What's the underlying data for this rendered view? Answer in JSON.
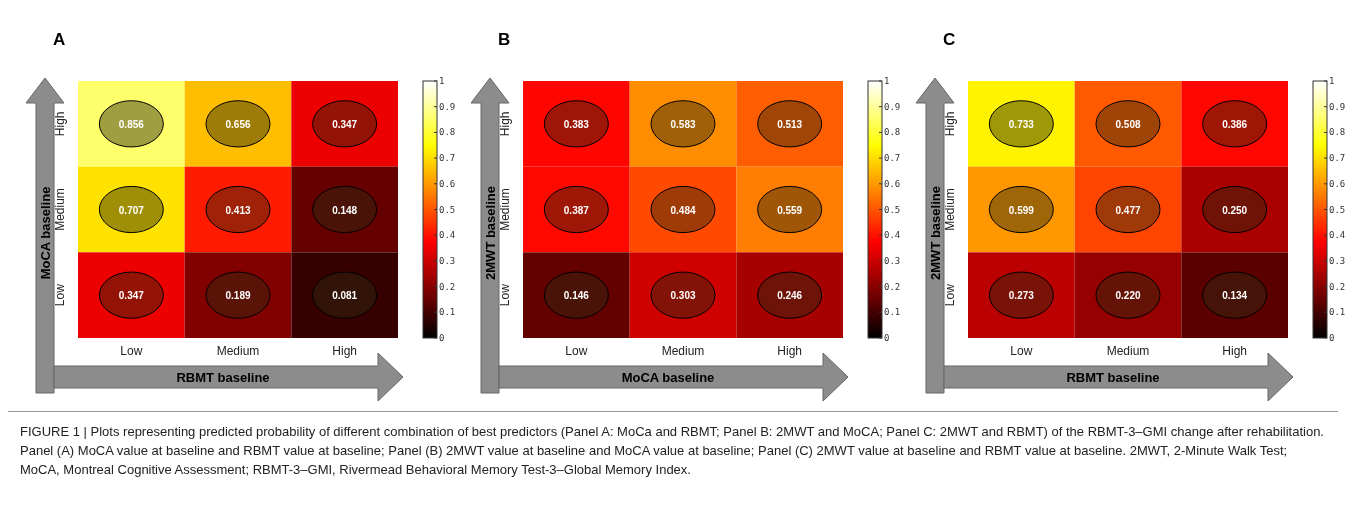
{
  "chart_data": [
    {
      "type": "heatmap",
      "title": "A",
      "xlabel": "RBMT baseline",
      "ylabel": "MoCA baseline",
      "categories": [
        "Low",
        "Medium",
        "High"
      ],
      "y_categories": [
        "High",
        "Medium",
        "Low"
      ],
      "cells": [
        [
          0.856,
          0.656,
          0.347
        ],
        [
          0.707,
          0.413,
          0.148
        ],
        [
          0.347,
          0.189,
          0.081
        ]
      ],
      "cell_labels": [
        [
          "0.856",
          "0.656",
          "0.347"
        ],
        [
          "0.707",
          "0.413",
          "0.148"
        ],
        [
          "0.347",
          "0.189",
          "0.081"
        ]
      ],
      "clim": [
        0,
        1
      ],
      "cticks": [
        0,
        0.1,
        0.2,
        0.3,
        0.4,
        0.5,
        0.6,
        0.7,
        0.8,
        0.9,
        1
      ],
      "annotations": [
        "FIGURE 1 | Plots representing predicted probability of different combination of best predictors (Panel A: MoCa and RBMT; Panel B: 2MWT and MoCA; Panel C: 2MWT and RBMT) of the RBMT-3–GMI change after rehabilitation. Panel (A) MoCA value at baseline and RBMT value at baseline; Panel (B) 2MWT value at baseline and MoCA value at baseline; Panel (C) 2MWT value at baseline and RBMT value at baseline. 2MWT, 2-Minute Walk Test; MoCA, Montreal Cognitive Assessment; RBMT-3–GMI, Rivermead Behavioral Memory Test-3–Global Memory Index."
      ]
    },
    {
      "type": "heatmap",
      "title": "B",
      "xlabel": "MoCA baseline",
      "ylabel": "2MWT baseline",
      "categories": [
        "Low",
        "Medium",
        "High"
      ],
      "y_categories": [
        "High",
        "Medium",
        "Low"
      ],
      "cells": [
        [
          0.383,
          0.583,
          0.513
        ],
        [
          0.387,
          0.484,
          0.559
        ],
        [
          0.146,
          0.303,
          0.246
        ]
      ],
      "cell_labels": [
        [
          "0.383",
          "0.583",
          "0.513"
        ],
        [
          "0.387",
          "0.484",
          "0.559"
        ],
        [
          "0.146",
          "0.303",
          "0.246"
        ]
      ],
      "clim": [
        0,
        1
      ],
      "cticks": [
        0,
        0.1,
        0.2,
        0.3,
        0.4,
        0.5,
        0.6,
        0.7,
        0.8,
        0.9,
        1
      ]
    },
    {
      "type": "heatmap",
      "title": "C",
      "xlabel": "RBMT baseline",
      "ylabel": "2MWT baseline",
      "categories": [
        "Low",
        "Medium",
        "High"
      ],
      "y_categories": [
        "High",
        "Medium",
        "Low"
      ],
      "cells": [
        [
          0.733,
          0.508,
          0.386
        ],
        [
          0.599,
          0.477,
          0.25
        ],
        [
          0.273,
          0.22,
          0.134
        ]
      ],
      "cell_labels": [
        [
          "0.733",
          "0.508",
          "0.386"
        ],
        [
          "0.599",
          "0.477",
          "0.250"
        ],
        [
          "0.273",
          "0.220",
          "0.134"
        ]
      ],
      "clim": [
        0,
        1
      ],
      "cticks": [
        0,
        0.1,
        0.2,
        0.3,
        0.4,
        0.5,
        0.6,
        0.7,
        0.8,
        0.9,
        1
      ]
    }
  ]
}
